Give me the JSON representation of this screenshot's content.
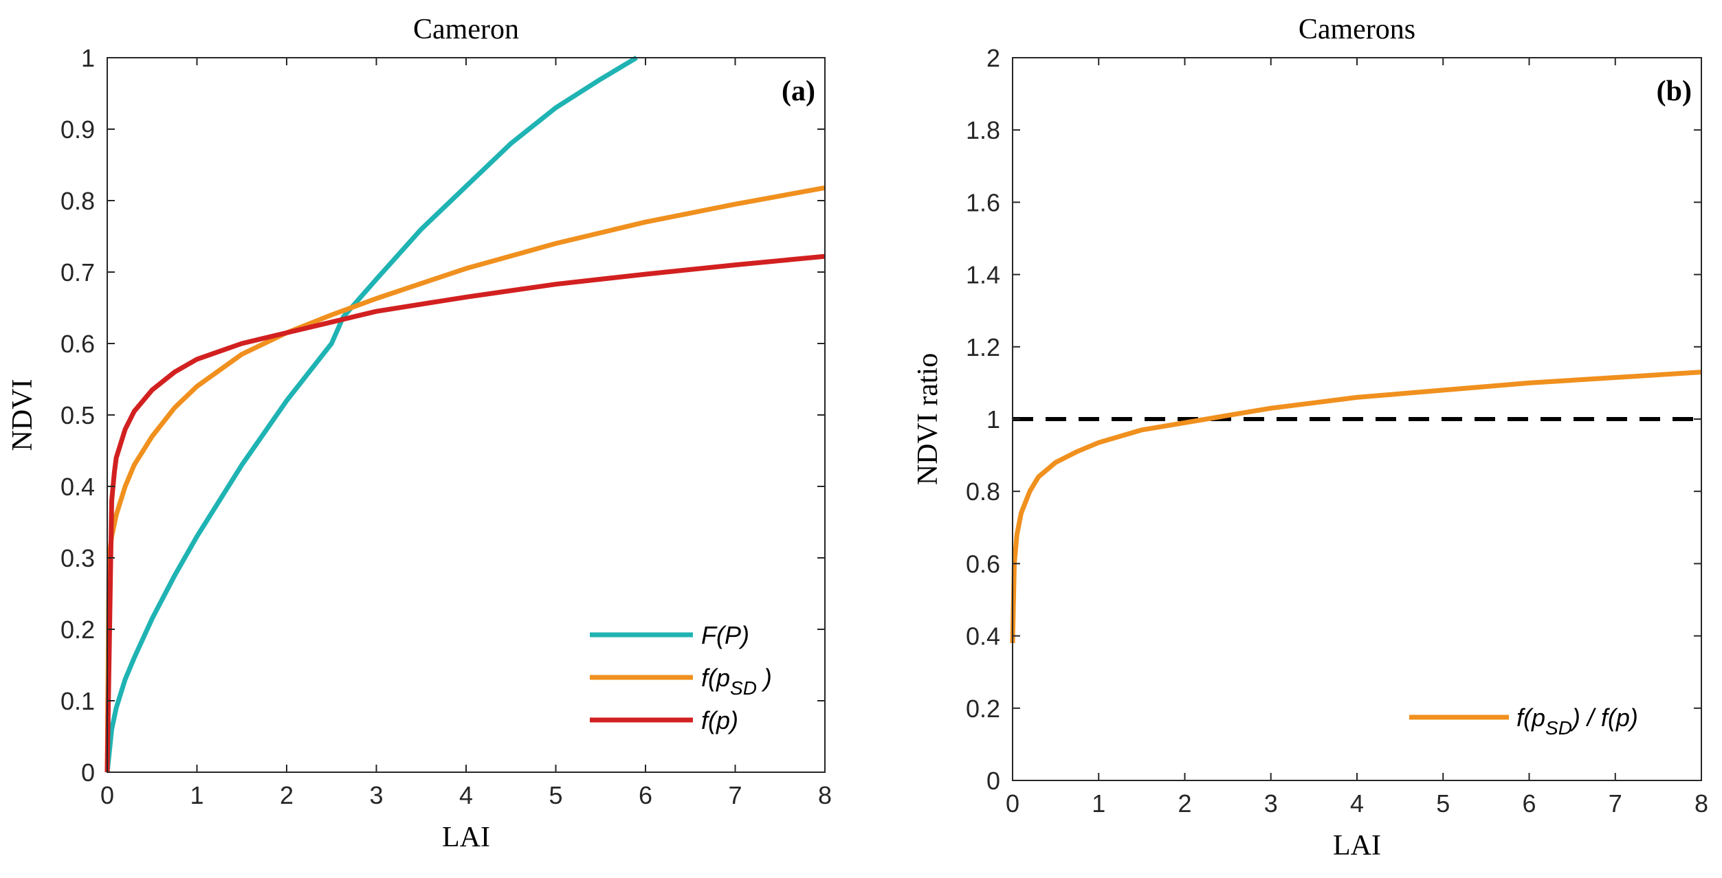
{
  "chart_data": [
    {
      "type": "line",
      "title": "Cameron",
      "panel_label": "(a)",
      "xlabel": "LAI",
      "ylabel": "NDVI",
      "xlim": [
        0,
        8
      ],
      "ylim": [
        0,
        1
      ],
      "xticks": [
        "0",
        "1",
        "2",
        "3",
        "4",
        "5",
        "6",
        "7",
        "8"
      ],
      "yticks": [
        "0",
        "0.1",
        "0.2",
        "0.3",
        "0.4",
        "0.5",
        "0.6",
        "0.7",
        "0.8",
        "0.9",
        "1"
      ],
      "legend_position": "bottom-right",
      "series": [
        {
          "name": "F(P)",
          "legend_text": "F(P)",
          "color": "#1fb3b3",
          "x": [
            0,
            0.05,
            0.1,
            0.2,
            0.3,
            0.5,
            0.75,
            1,
            1.5,
            2,
            2.5,
            2.63,
            3,
            3.5,
            4,
            4.5,
            5,
            5.5,
            5.9
          ],
          "y": [
            0,
            0.06,
            0.09,
            0.13,
            0.16,
            0.215,
            0.275,
            0.33,
            0.43,
            0.52,
            0.6,
            0.637,
            0.69,
            0.76,
            0.82,
            0.88,
            0.93,
            0.97,
            1.0
          ]
        },
        {
          "name": "f(p_SD)",
          "legend_text": "f(p",
          "legend_sub": "SD",
          "legend_suffix": " )",
          "color": "#f0901e",
          "x": [
            0,
            0.02,
            0.05,
            0.1,
            0.2,
            0.3,
            0.5,
            0.75,
            1,
            1.5,
            2,
            2.5,
            3,
            4,
            5,
            6,
            7,
            8
          ],
          "y": [
            0,
            0.3,
            0.33,
            0.36,
            0.4,
            0.43,
            0.47,
            0.51,
            0.54,
            0.585,
            0.615,
            0.64,
            0.663,
            0.705,
            0.74,
            0.77,
            0.795,
            0.818
          ]
        },
        {
          "name": "f(p)",
          "legend_text": "f(p)",
          "color": "#d22020",
          "x": [
            0,
            0.05,
            0.08,
            0.1,
            0.2,
            0.3,
            0.5,
            0.75,
            1,
            1.5,
            2,
            2.5,
            3,
            4,
            5,
            6,
            7,
            8
          ],
          "y": [
            0,
            0.38,
            0.42,
            0.44,
            0.48,
            0.505,
            0.535,
            0.56,
            0.578,
            0.6,
            0.615,
            0.63,
            0.645,
            0.665,
            0.683,
            0.697,
            0.71,
            0.722
          ]
        }
      ]
    },
    {
      "type": "line",
      "title": "Camerons",
      "panel_label": "(b)",
      "xlabel": "LAI",
      "ylabel": "NDVI ratio",
      "xlim": [
        0,
        8
      ],
      "ylim": [
        0,
        2
      ],
      "xticks": [
        "0",
        "1",
        "2",
        "3",
        "4",
        "5",
        "6",
        "7",
        "8"
      ],
      "yticks": [
        "0",
        "0.2",
        "0.4",
        "0.6",
        "0.8",
        "1",
        "1.2",
        "1.4",
        "1.6",
        "1.8",
        "2"
      ],
      "legend_position": "bottom-right",
      "reference_line": {
        "y": 1,
        "style": "dashed",
        "color": "#000000"
      },
      "series": [
        {
          "name": "f(p_SD) / f(p)",
          "legend_text": "f(p",
          "legend_sub": "SD",
          "legend_suffix": ") / f(p)",
          "color": "#f0901e",
          "x": [
            0,
            0.02,
            0.05,
            0.1,
            0.2,
            0.3,
            0.5,
            0.75,
            1,
            1.5,
            2,
            2.5,
            3,
            4,
            5,
            6,
            7,
            8
          ],
          "y": [
            0.38,
            0.6,
            0.68,
            0.74,
            0.8,
            0.84,
            0.88,
            0.91,
            0.935,
            0.97,
            0.99,
            1.01,
            1.03,
            1.06,
            1.08,
            1.1,
            1.115,
            1.13
          ]
        }
      ]
    }
  ]
}
